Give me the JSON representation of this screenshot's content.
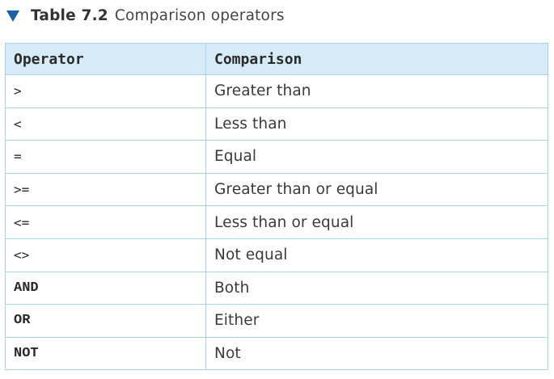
{
  "caption": {
    "label": "Table 7.2",
    "title": "Comparison operators"
  },
  "table": {
    "headers": [
      "Operator",
      "Comparison"
    ],
    "rows": [
      {
        "operator": ">",
        "comparison": "Greater than",
        "keyword": false
      },
      {
        "operator": "<",
        "comparison": "Less than",
        "keyword": false
      },
      {
        "operator": "=",
        "comparison": "Equal",
        "keyword": false
      },
      {
        "operator": ">=",
        "comparison": "Greater than or equal",
        "keyword": false
      },
      {
        "operator": "<=",
        "comparison": "Less than or equal",
        "keyword": false
      },
      {
        "operator": "<>",
        "comparison": "Not equal",
        "keyword": false
      },
      {
        "operator": "AND",
        "comparison": "Both",
        "keyword": true
      },
      {
        "operator": "OR",
        "comparison": "Either",
        "keyword": true
      },
      {
        "operator": "NOT",
        "comparison": "Not",
        "keyword": true
      }
    ]
  },
  "colors": {
    "accent_triangle": "#1f5fa8",
    "header_background": "#d6ebf7",
    "border": "#a9d3ea"
  },
  "icons": {
    "caption_marker": "triangle-down-icon"
  }
}
